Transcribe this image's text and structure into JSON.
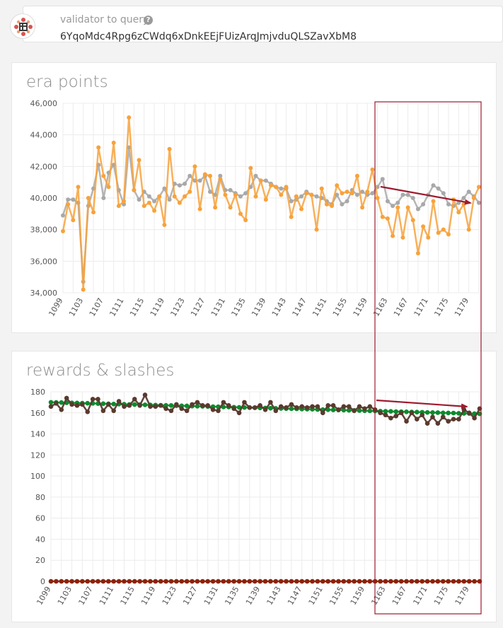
{
  "query": {
    "label": "validator to query",
    "help_icon": "question-circle-icon",
    "value": "6YqoMdc4Rpg6zCWdq6xDnkEEjFUizArqJmjvduQLSZavXbM8",
    "avatar_icon": "identicon-icon"
  },
  "colors": {
    "orange": "#f7a23c",
    "gray": "#a8a8a8",
    "green": "#0d8a2e",
    "brown": "#5a3a2e",
    "red_dot": "#8b2308",
    "annotation": "#9e1b2f"
  },
  "chart_data": [
    {
      "type": "line",
      "title": "era points",
      "x_first": 1099,
      "x_ticks": [
        "1099",
        "1103",
        "1107",
        "1111",
        "1115",
        "1119",
        "1123",
        "1127",
        "1131",
        "1135",
        "1139",
        "1143",
        "1147",
        "1151",
        "1155",
        "1159",
        "1163",
        "1167",
        "1171",
        "1175",
        "1179"
      ],
      "ylim": [
        34000,
        46000
      ],
      "y_ticks": [
        "34,000",
        "36,000",
        "38,000",
        "40,000",
        "42,000",
        "44,000",
        "46,000"
      ],
      "y_tick_values": [
        34000,
        36000,
        38000,
        40000,
        42000,
        44000,
        46000
      ],
      "grid": true,
      "series": [
        {
          "color": "#a8a8a8",
          "values": [
            38900,
            39900,
            39900,
            39700,
            34700,
            39500,
            40600,
            42100,
            40000,
            41600,
            42100,
            40500,
            39600,
            43200,
            40500,
            39900,
            40400,
            40100,
            39800,
            40100,
            40600,
            39900,
            40900,
            40800,
            40900,
            41400,
            41100,
            41100,
            41400,
            40400,
            40200,
            41400,
            40500,
            40500,
            40300,
            40100,
            40300,
            40700,
            41400,
            41100,
            41100,
            40900,
            40700,
            40600,
            40600,
            39800,
            39900,
            40100,
            40400,
            40200,
            40100,
            40000,
            39800,
            39600,
            40200,
            39600,
            39800,
            40500,
            40200,
            40400,
            40200,
            40300,
            40700,
            41200,
            39800,
            39500,
            39700,
            40200,
            40200,
            40000,
            39300,
            39600,
            40200,
            40800,
            40600,
            40300,
            39600,
            39500,
            39700,
            40000,
            40400,
            40100,
            39700
          ]
        },
        {
          "color": "#f7a23c",
          "values": [
            37900,
            39600,
            38600,
            40700,
            34200,
            40000,
            39100,
            43200,
            41400,
            40700,
            43500,
            39500,
            39800,
            45100,
            40500,
            42400,
            39500,
            39700,
            39200,
            40100,
            38300,
            43100,
            40100,
            39700,
            40100,
            40400,
            42000,
            39300,
            41500,
            41400,
            39400,
            41200,
            40200,
            39400,
            40200,
            39000,
            38600,
            41900,
            40100,
            41100,
            39900,
            40800,
            40700,
            40200,
            40700,
            38800,
            40100,
            39300,
            40300,
            40200,
            38000,
            40600,
            39600,
            39500,
            40800,
            40300,
            40400,
            40300,
            41400,
            39400,
            40400,
            41800,
            40000,
            38800,
            38700,
            37600,
            39400,
            37500,
            39400,
            38600,
            36500,
            38200,
            37500,
            39800,
            37800,
            38000,
            37700,
            39900,
            39100,
            39600,
            38000,
            40000,
            40700
          ]
        }
      ]
    },
    {
      "type": "line",
      "title": "rewards & slashes",
      "x_first": 1099,
      "x_ticks": [
        "1099",
        "1103",
        "1107",
        "1111",
        "1115",
        "1119",
        "1123",
        "1127",
        "1131",
        "1135",
        "1139",
        "1143",
        "1147",
        "1151",
        "1155",
        "1159",
        "1163",
        "1167",
        "1171",
        "1175",
        "1179"
      ],
      "ylim": [
        0,
        180
      ],
      "y_ticks": [
        "0",
        "20",
        "40",
        "60",
        "80",
        "100",
        "120",
        "140",
        "160",
        "180"
      ],
      "y_tick_values": [
        0,
        20,
        40,
        60,
        80,
        100,
        120,
        140,
        160,
        180
      ],
      "grid": true,
      "series": [
        {
          "color": "#0d8a2e",
          "values": [
            170,
            169.9,
            169.8,
            169.6,
            169.5,
            169.4,
            169.2,
            169.1,
            169,
            168.8,
            168.7,
            168.6,
            168.4,
            168.3,
            168.2,
            168,
            167.9,
            167.8,
            167.6,
            167.5,
            167.4,
            167.2,
            167.1,
            167,
            166.8,
            166.7,
            166.6,
            166.4,
            166.3,
            166.2,
            166,
            165.9,
            165.8,
            165.6,
            165.5,
            165.4,
            165.2,
            165.1,
            165,
            164.8,
            164.7,
            164.6,
            164.4,
            164.3,
            164.2,
            164,
            163.9,
            163.8,
            163.6,
            163.5,
            163.4,
            163.2,
            163.1,
            163,
            162.8,
            162.7,
            162.6,
            162.4,
            162.3,
            162.2,
            162,
            161.9,
            161.8,
            161.6,
            161.5,
            161.4,
            161.2,
            161.1,
            161,
            160.8,
            160.7,
            160.6,
            160.4,
            160.3,
            160.2,
            160,
            159.9,
            159.8,
            159.6,
            159.5,
            159.4,
            159.2,
            159.1
          ]
        },
        {
          "color": "#5a3a2e",
          "values": [
            166,
            169,
            163,
            174,
            168,
            167,
            168,
            161,
            173,
            173,
            162,
            168,
            162,
            171,
            166,
            167,
            173,
            167,
            177,
            166,
            166,
            167,
            164,
            162,
            168,
            164,
            162,
            168,
            170,
            167,
            167,
            163,
            162,
            170,
            167,
            164,
            160,
            170,
            165,
            165,
            167,
            163,
            170,
            162,
            166,
            165,
            168,
            165,
            166,
            165,
            166,
            166,
            160,
            167,
            167,
            163,
            166,
            166,
            162,
            166,
            164,
            166,
            163,
            160,
            158,
            155,
            157,
            160,
            152,
            160,
            154,
            158,
            150,
            156,
            150,
            156,
            152,
            154,
            154,
            163,
            160,
            155,
            164
          ]
        },
        {
          "color": "#8b2308",
          "values": [
            0,
            0,
            0,
            0,
            0,
            0,
            0,
            0,
            0,
            0,
            0,
            0,
            0,
            0,
            0,
            0,
            0,
            0,
            0,
            0,
            0,
            0,
            0,
            0,
            0,
            0,
            0,
            0,
            0,
            0,
            0,
            0,
            0,
            0,
            0,
            0,
            0,
            0,
            0,
            0,
            0,
            0,
            0,
            0,
            0,
            0,
            0,
            0,
            0,
            0,
            0,
            0,
            0,
            0,
            0,
            0,
            0,
            0,
            0,
            0,
            0,
            0,
            0,
            0,
            0,
            0,
            0,
            0,
            0,
            0,
            0,
            0,
            0,
            0,
            0,
            0,
            0,
            0,
            0,
            0,
            0,
            0,
            0
          ]
        }
      ]
    }
  ]
}
